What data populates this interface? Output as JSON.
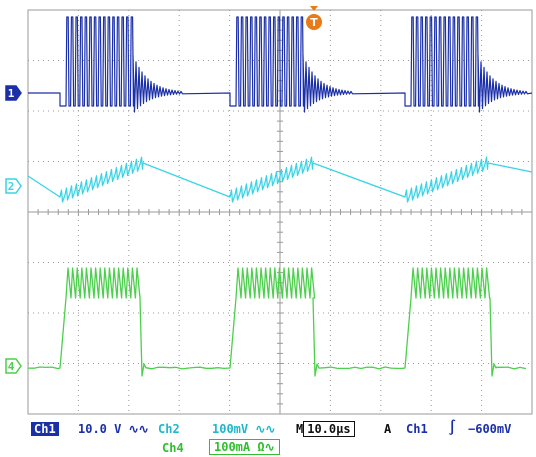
{
  "screen": {
    "background": "#ffffff",
    "grid_color": "#9a9a9a",
    "grid_divisions": {
      "x": 10,
      "y": 8
    }
  },
  "channels": [
    {
      "id": "1",
      "color": "#1a2fa8",
      "marker_style": "filled"
    },
    {
      "id": "2",
      "color": "#3ad4e6",
      "marker_style": "outline"
    },
    {
      "id": "4",
      "color": "#4ccf4c",
      "marker_style": "outline"
    }
  ],
  "trigger_marker": {
    "label": "T",
    "color": "#e87a18"
  },
  "readout": {
    "ch1_label": "Ch1",
    "ch1_scale": "10.0 V ∿∿",
    "ch2_label": "Ch2",
    "ch2_scale": "100mV ∿∿",
    "ch4_label": "Ch4",
    "ch4_scale": "100mA Ω∿",
    "timebase_prefix": "M",
    "timebase_value": "10.0µs",
    "trigger_mode": "A",
    "trigger_source": "Ch1",
    "trigger_slope": "∫",
    "trigger_level": "−600mV"
  }
}
